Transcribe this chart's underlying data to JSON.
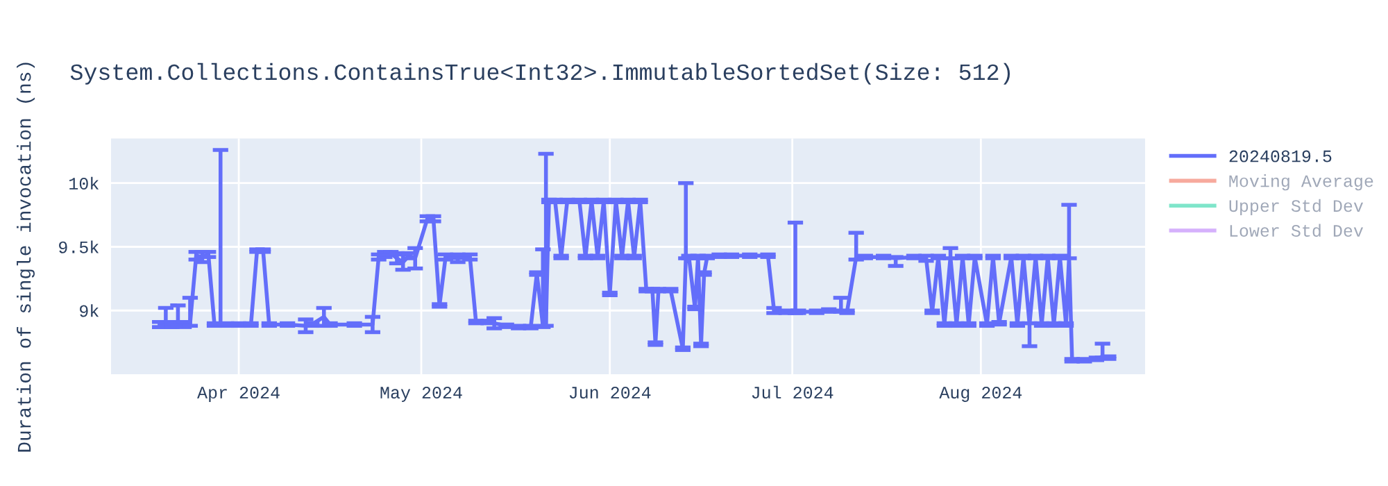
{
  "chart_data": {
    "type": "line",
    "title": "System.Collections.ContainsTrue<Int32>.ImmutableSortedSet(Size: 512)",
    "ylabel": "Duration of single invocation (ns)",
    "x": [
      "2024-03-19",
      "2024-03-20",
      "2024-03-21",
      "2024-03-22",
      "2024-03-23",
      "2024-03-24",
      "2024-03-25",
      "2024-03-26",
      "2024-03-27",
      "2024-03-28",
      "2024-03-29",
      "2024-03-30",
      "2024-04-01",
      "2024-04-03",
      "2024-04-04",
      "2024-04-05",
      "2024-04-06",
      "2024-04-09",
      "2024-04-12",
      "2024-04-13",
      "2024-04-15",
      "2024-04-16",
      "2024-04-20",
      "2024-04-23",
      "2024-04-24",
      "2024-04-25",
      "2024-04-26",
      "2024-04-27",
      "2024-04-28",
      "2024-04-29",
      "2024-04-30",
      "2024-05-02",
      "2024-05-03",
      "2024-05-04",
      "2024-05-05",
      "2024-05-07",
      "2024-05-09",
      "2024-05-10",
      "2024-05-12",
      "2024-05-13",
      "2024-05-15",
      "2024-05-17",
      "2024-05-19",
      "2024-05-20",
      "2024-05-21",
      "2024-05-21T12:00",
      "2024-05-22",
      "2024-05-23",
      "2024-05-24",
      "2024-05-25",
      "2024-05-27",
      "2024-05-28",
      "2024-05-29",
      "2024-05-30",
      "2024-05-31",
      "2024-06-01",
      "2024-06-02",
      "2024-06-03",
      "2024-06-04",
      "2024-06-05",
      "2024-06-06",
      "2024-06-07",
      "2024-06-08",
      "2024-06-08T12:00",
      "2024-06-09",
      "2024-06-11",
      "2024-06-13",
      "2024-06-13T12:00",
      "2024-06-14",
      "2024-06-15",
      "2024-06-15T12:00",
      "2024-06-16",
      "2024-06-16T12:00",
      "2024-06-17",
      "2024-06-19",
      "2024-06-21",
      "2024-06-24",
      "2024-06-27",
      "2024-06-28",
      "2024-06-30",
      "2024-07-01T12:00",
      "2024-07-02",
      "2024-07-05",
      "2024-07-07",
      "2024-07-09",
      "2024-07-10",
      "2024-07-11T12:00",
      "2024-07-13",
      "2024-07-16",
      "2024-07-18",
      "2024-07-21",
      "2024-07-23",
      "2024-07-24",
      "2024-07-25",
      "2024-07-26",
      "2024-07-27",
      "2024-07-28",
      "2024-07-29",
      "2024-07-30",
      "2024-07-31",
      "2024-08-02",
      "2024-08-03",
      "2024-08-04",
      "2024-08-06",
      "2024-08-07",
      "2024-08-08",
      "2024-08-09",
      "2024-08-10",
      "2024-08-11",
      "2024-08-12",
      "2024-08-13",
      "2024-08-14",
      "2024-08-15",
      "2024-08-15T12:00",
      "2024-08-16",
      "2024-08-18",
      "2024-08-20",
      "2024-08-21",
      "2024-08-22"
    ],
    "series": [
      {
        "name": "20240819.5",
        "color": "#636efa",
        "values": [
          8890,
          8900,
          8890,
          8900,
          8890,
          8900,
          9430,
          9420,
          9440,
          8890,
          8890,
          8890,
          8890,
          8890,
          9470,
          9470,
          8890,
          8890,
          8880,
          8890,
          8950,
          8890,
          8890,
          8890,
          9420,
          9440,
          9450,
          9410,
          9380,
          9430,
          9410,
          9720,
          9720,
          9040,
          9420,
          9410,
          9420,
          8910,
          8910,
          8900,
          8880,
          8870,
          8870,
          9290,
          8880,
          8900,
          9860,
          9860,
          9420,
          9860,
          9860,
          9420,
          9860,
          9420,
          9860,
          9130,
          9860,
          9420,
          9860,
          9420,
          9860,
          9160,
          9160,
          8740,
          9160,
          9160,
          8700,
          9420,
          9420,
          9020,
          9420,
          8730,
          9290,
          9420,
          9430,
          9430,
          9430,
          9430,
          9000,
          8990,
          8990,
          8990,
          8990,
          9000,
          9000,
          8990,
          9420,
          9420,
          9420,
          9410,
          9420,
          9410,
          8990,
          9420,
          8890,
          9420,
          8890,
          9420,
          8890,
          9420,
          8890,
          9420,
          8900,
          9420,
          8890,
          9420,
          8890,
          9420,
          8890,
          9420,
          8890,
          9420,
          8890,
          9420,
          8610,
          8610,
          8620,
          8640,
          8630
        ],
        "errors": [
          20,
          [
            8880,
            9020
          ],
          20,
          [
            8880,
            9040
          ],
          20,
          [
            8880,
            9100
          ],
          30,
          40,
          20,
          10,
          [
            8890,
            10260
          ],
          10,
          10,
          10,
          10,
          10,
          10,
          10,
          50,
          10,
          70,
          10,
          10,
          60,
          20,
          20,
          10,
          40,
          60,
          20,
          80,
          20,
          20,
          10,
          20,
          30,
          20,
          10,
          10,
          40,
          10,
          10,
          10,
          10,
          [
            8870,
            9480
          ],
          [
            8880,
            10230
          ],
          10,
          10,
          10,
          10,
          10,
          10,
          10,
          10,
          10,
          10,
          10,
          10,
          10,
          10,
          10,
          10,
          10,
          10,
          10,
          10,
          10,
          [
            9410,
            10000
          ],
          10,
          10,
          10,
          10,
          10,
          10,
          10,
          10,
          10,
          10,
          20,
          10,
          [
            8980,
            9690
          ],
          10,
          10,
          10,
          [
            8990,
            9100
          ],
          10,
          [
            9400,
            9610
          ],
          10,
          10,
          [
            9350,
            9420
          ],
          10,
          20,
          10,
          10,
          10,
          [
            9410,
            9490
          ],
          10,
          10,
          10,
          10,
          10,
          10,
          10,
          10,
          10,
          10,
          [
            8720,
            8900
          ],
          10,
          10,
          10,
          10,
          10,
          10,
          [
            9410,
            9830
          ],
          10,
          10,
          10,
          [
            8630,
            8740
          ],
          10
        ]
      },
      {
        "name": "Moving Average",
        "color": "#ef553b",
        "values": [
          null,
          null,
          null,
          null,
          null,
          null,
          null,
          null,
          null,
          null,
          null,
          null,
          null,
          null,
          null,
          null,
          null,
          null,
          null,
          null,
          null,
          null,
          null,
          null,
          null,
          null,
          null,
          null,
          null,
          null,
          null,
          null,
          null,
          null,
          null,
          null,
          null,
          null,
          null,
          null,
          null,
          null,
          null,
          null,
          null,
          null,
          null,
          null,
          null,
          null,
          null,
          null,
          null,
          null,
          null,
          null,
          null,
          null,
          null,
          null,
          null,
          null,
          null,
          null,
          null,
          null,
          null,
          null,
          null,
          null,
          null,
          null,
          null,
          null,
          null,
          null,
          null,
          null,
          null,
          null,
          null,
          null,
          null,
          null,
          null,
          null,
          null,
          null,
          null,
          null,
          null,
          null,
          null,
          null,
          null,
          null,
          null,
          null,
          null,
          null,
          null,
          null,
          null,
          null,
          null,
          null,
          null,
          null,
          null,
          null,
          null,
          null,
          null,
          null,
          null,
          null,
          null,
          null,
          null
        ]
      },
      {
        "name": "Upper Std Dev",
        "color": "#00cc96",
        "values": [
          null,
          null,
          null,
          null,
          null,
          null,
          null,
          null,
          null,
          null,
          null,
          null,
          null,
          null,
          null,
          null,
          null,
          null,
          null,
          null,
          null,
          null,
          null,
          null,
          null,
          null,
          null,
          null,
          null,
          null,
          null,
          null,
          null,
          null,
          null,
          null,
          null,
          null,
          null,
          null,
          null,
          null,
          null,
          null,
          null,
          null,
          null,
          null,
          null,
          null,
          null,
          null,
          null,
          null,
          null,
          null,
          null,
          null,
          null,
          null,
          null,
          null,
          null,
          null,
          null,
          null,
          null,
          null,
          null,
          null,
          null,
          null,
          null,
          null,
          null,
          null,
          null,
          null,
          null,
          null,
          null,
          null,
          null,
          null,
          null,
          null,
          null,
          null,
          null,
          null,
          null,
          null,
          null,
          null,
          null,
          null,
          null,
          null,
          null,
          null,
          null,
          null,
          null,
          null,
          null,
          null,
          null,
          null,
          null,
          null,
          null,
          null,
          null,
          null,
          null,
          null,
          null,
          null,
          null
        ]
      },
      {
        "name": "Lower Std Dev",
        "color": "#ab63fa",
        "values": [
          null,
          null,
          null,
          null,
          null,
          null,
          null,
          null,
          null,
          null,
          null,
          null,
          null,
          null,
          null,
          null,
          null,
          null,
          null,
          null,
          null,
          null,
          null,
          null,
          null,
          null,
          null,
          null,
          null,
          null,
          null,
          null,
          null,
          null,
          null,
          null,
          null,
          null,
          null,
          null,
          null,
          null,
          null,
          null,
          null,
          null,
          null,
          null,
          null,
          null,
          null,
          null,
          null,
          null,
          null,
          null,
          null,
          null,
          null,
          null,
          null,
          null,
          null,
          null,
          null,
          null,
          null,
          null,
          null,
          null,
          null,
          null,
          null,
          null,
          null,
          null,
          null,
          null,
          null,
          null,
          null,
          null,
          null,
          null,
          null,
          null,
          null,
          null,
          null,
          null,
          null,
          null,
          null,
          null,
          null,
          null,
          null,
          null,
          null,
          null,
          null,
          null,
          null,
          null,
          null,
          null,
          null,
          null,
          null,
          null,
          null,
          null,
          null,
          null,
          null,
          null,
          null,
          null,
          null
        ]
      }
    ],
    "xlim": [
      "2024-03-11",
      "2024-08-28"
    ],
    "xticks": [
      {
        "value": "2024-04-01",
        "label": "Apr 2024"
      },
      {
        "value": "2024-05-01",
        "label": "May 2024"
      },
      {
        "value": "2024-06-01",
        "label": "Jun 2024"
      },
      {
        "value": "2024-07-01",
        "label": "Jul 2024"
      },
      {
        "value": "2024-08-01",
        "label": "Aug 2024"
      }
    ],
    "ylim": [
      8500,
      10350
    ],
    "yticks": [
      {
        "value": 9000,
        "label": "9k"
      },
      {
        "value": 9500,
        "label": "9.5k"
      },
      {
        "value": 10000,
        "label": "10k"
      }
    ],
    "grid": true,
    "legend": "top right",
    "marker": "none",
    "line_style": "solid"
  }
}
